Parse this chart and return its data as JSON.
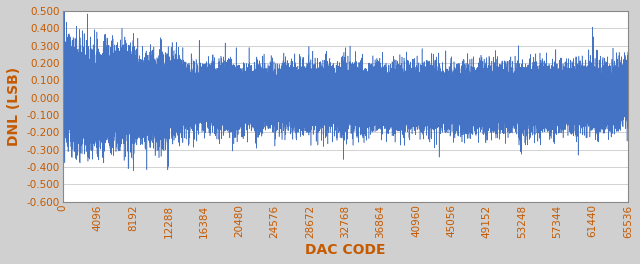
{
  "title": "",
  "xlabel": "DAC CODE",
  "ylabel": "DNL (LSB)",
  "xlim": [
    0,
    65536
  ],
  "ylim": [
    -0.6,
    0.5
  ],
  "yticks": [
    0.5,
    0.4,
    0.3,
    0.2,
    0.1,
    0.0,
    -0.1,
    -0.2,
    -0.3,
    -0.4,
    -0.5,
    -0.6
  ],
  "xticks": [
    0,
    4096,
    8192,
    12288,
    16384,
    20480,
    24576,
    28672,
    32768,
    36864,
    40960,
    45056,
    49152,
    53248,
    57344,
    61440,
    65536
  ],
  "line_color": "#4472C4",
  "line_width": 0.4,
  "background_color": "#ffffff",
  "outer_background": "#d0d0d0",
  "num_points": 65536,
  "noise_std_early": 0.13,
  "noise_std_mid": 0.09,
  "noise_std_late": 0.11,
  "grid_color": "#c0c0c0",
  "xlabel_fontsize": 10,
  "ylabel_fontsize": 10,
  "tick_fontsize": 7.5,
  "label_color": "#c55a00"
}
